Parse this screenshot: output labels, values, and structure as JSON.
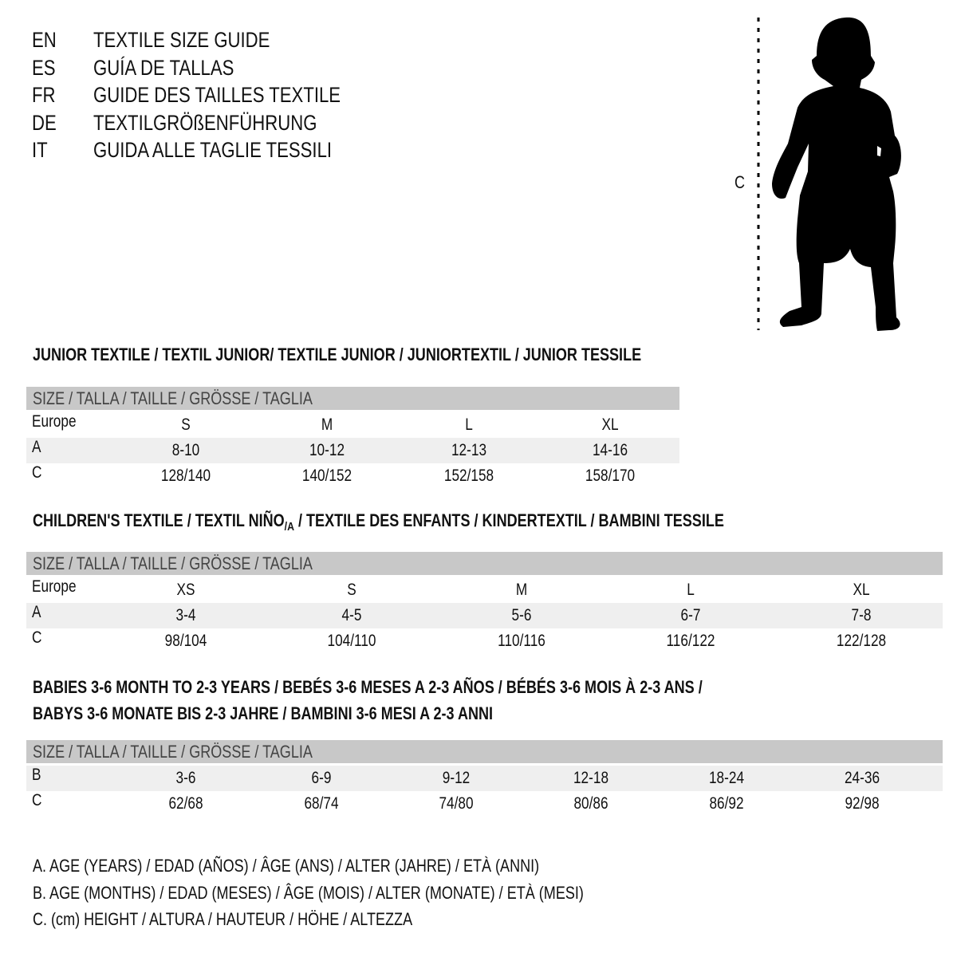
{
  "title_block": [
    {
      "code": "EN",
      "text": "TEXTILE SIZE GUIDE"
    },
    {
      "code": "ES",
      "text": "GUÍA DE TALLAS"
    },
    {
      "code": "FR",
      "text": "GUIDE DES TAILLES TEXTILE"
    },
    {
      "code": "DE",
      "text": "TEXTILGRÖßENFÜHRUNG"
    },
    {
      "code": "IT",
      "text": "GUIDA ALLE TAGLIE TESSILI"
    }
  ],
  "figure": {
    "measure_label": "C",
    "icon": "child-silhouette"
  },
  "junior": {
    "title": "JUNIOR TEXTILE / TEXTIL JUNIOR/ TEXTILE JUNIOR / JUNIORTEXTIL / JUNIOR TESSILE",
    "header": "SIZE / TALLA / TAILLE / GRÖSSE / TAGLIA",
    "rows": [
      {
        "label": "Europe",
        "cells": [
          "S",
          "M",
          "L",
          "XL"
        ]
      },
      {
        "label": "A",
        "cells": [
          "8-10",
          "10-12",
          "12-13",
          "14-16"
        ]
      },
      {
        "label": "C",
        "cells": [
          "128/140",
          "140/152",
          "152/158",
          "158/170"
        ]
      }
    ]
  },
  "children": {
    "title_pre": "CHILDREN'S TEXTILE / TEXTIL NIÑO",
    "title_sub": "/A",
    "title_post": " / TEXTILE DES ENFANTS / KINDERTEXTIL / BAMBINI TESSILE",
    "header": "SIZE / TALLA / TAILLE / GRÖSSE / TAGLIA",
    "rows": [
      {
        "label": "Europe",
        "cells": [
          "XS",
          "S",
          "M",
          "L",
          "XL"
        ]
      },
      {
        "label": "A",
        "cells": [
          "3-4",
          "4-5",
          "5-6",
          "6-7",
          "7-8"
        ]
      },
      {
        "label": "C",
        "cells": [
          "98/104",
          "104/110",
          "110/116",
          "116/122",
          "122/128"
        ]
      }
    ]
  },
  "babies": {
    "title_line1": "BABIES 3-6 MONTH TO 2-3 YEARS / BEBÉS 3-6 MESES A 2-3 AÑOS / BÉBÉS 3-6 MOIS À 2-3 ANS /",
    "title_line2": "BABYS 3-6 MONATE BIS 2-3 JAHRE / BAMBINI 3-6 MESI A 2-3 ANNI",
    "header": "SIZE / TALLA / TAILLE / GRÖSSE / TAGLIA",
    "rows": [
      {
        "label": "B",
        "cells": [
          "3-6",
          "6-9",
          "9-12",
          "12-18",
          "18-24",
          "24-36"
        ]
      },
      {
        "label": "C",
        "cells": [
          "62/68",
          "68/74",
          "74/80",
          "80/86",
          "86/92",
          "92/98"
        ]
      }
    ]
  },
  "legend": [
    "A. AGE (YEARS) / EDAD (AÑOS) / ÂGE (ANS) / ALTER (JAHRE) / ETÀ (ANNI)",
    "B. AGE (MONTHS) / EDAD (MESES) / ÂGE (MOIS) / ALTER (MONATE) / ETÀ (MESI)",
    "C. (cm) HEIGHT / ALTURA / HAUTEUR / HÖHE / ALTEZZA"
  ]
}
